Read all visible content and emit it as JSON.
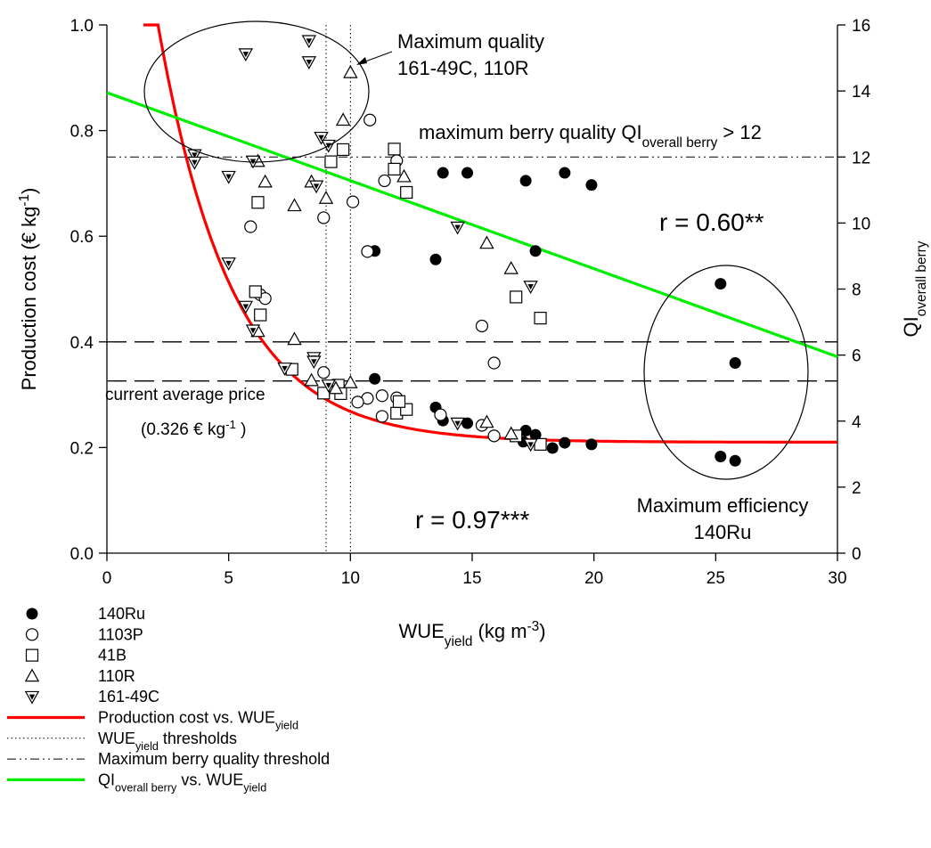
{
  "chart_data": {
    "type": "scatter",
    "x_axis": {
      "label": "WUE",
      "label_sub": "yield",
      "label_units": "(kg m",
      "label_sup": "-3",
      "label_close": ")",
      "range": [
        0,
        30
      ],
      "ticks": [
        0,
        5,
        10,
        15,
        20,
        25,
        30
      ]
    },
    "y_left": {
      "label": "Production cost (€ kg",
      "label_sup": "-1",
      "label_close": ")",
      "range": [
        0,
        1
      ],
      "ticks": [
        "0.0",
        "0.2",
        "0.4",
        "0.6",
        "0.8",
        "1.0"
      ]
    },
    "y_right": {
      "label": "QI",
      "label_sub": "overall berry",
      "range": [
        0,
        16
      ],
      "ticks": [
        0,
        2,
        4,
        6,
        8,
        10,
        12,
        14,
        16
      ]
    },
    "series": [
      {
        "name": "140Ru",
        "marker": "filled-circle",
        "points": [
          [
            11.0,
            0.572
          ],
          [
            11.0,
            0.33
          ],
          [
            13.5,
            0.556
          ],
          [
            13.5,
            0.276
          ],
          [
            13.8,
            0.72
          ],
          [
            13.8,
            0.251
          ],
          [
            14.8,
            0.72
          ],
          [
            14.8,
            0.246
          ],
          [
            17.2,
            0.705
          ],
          [
            17.2,
            0.232
          ],
          [
            17.1,
            0.211
          ],
          [
            17.6,
            0.572
          ],
          [
            17.6,
            0.224
          ],
          [
            18.8,
            0.72
          ],
          [
            18.8,
            0.209
          ],
          [
            18.3,
            0.199
          ],
          [
            19.9,
            0.697
          ],
          [
            19.9,
            0.206
          ],
          [
            25.2,
            0.51
          ],
          [
            25.2,
            0.183
          ],
          [
            25.8,
            0.36
          ],
          [
            25.8,
            0.175
          ]
        ]
      },
      {
        "name": "1103P",
        "marker": "open-circle",
        "points": [
          [
            5.9,
            0.618
          ],
          [
            6.3,
            0.489
          ],
          [
            6.5,
            0.482
          ],
          [
            8.9,
            0.635
          ],
          [
            8.9,
            0.342
          ],
          [
            10.1,
            0.665
          ],
          [
            10.8,
            0.82
          ],
          [
            10.7,
            0.571
          ],
          [
            10.7,
            0.293
          ],
          [
            11.4,
            0.705
          ],
          [
            11.9,
            0.743
          ],
          [
            11.9,
            0.294
          ],
          [
            11.3,
            0.298
          ],
          [
            11.3,
            0.259
          ],
          [
            13.7,
            0.262
          ],
          [
            15.4,
            0.43
          ],
          [
            15.4,
            0.242
          ],
          [
            15.9,
            0.36
          ],
          [
            15.9,
            0.222
          ],
          [
            10.3,
            0.286
          ]
        ]
      },
      {
        "name": "41B",
        "marker": "open-square",
        "points": [
          [
            6.2,
            0.664
          ],
          [
            6.1,
            0.495
          ],
          [
            6.3,
            0.451
          ],
          [
            7.6,
            0.348
          ],
          [
            9.2,
            0.741
          ],
          [
            9.7,
            0.764
          ],
          [
            9.5,
            0.318
          ],
          [
            8.9,
            0.303
          ],
          [
            11.8,
            0.765
          ],
          [
            11.8,
            0.727
          ],
          [
            11.9,
            0.265
          ],
          [
            12.3,
            0.683
          ],
          [
            12.3,
            0.272
          ],
          [
            12.0,
            0.287
          ],
          [
            16.8,
            0.485
          ],
          [
            16.8,
            0.222
          ],
          [
            17.8,
            0.445
          ],
          [
            17.8,
            0.206
          ],
          [
            9.6,
            0.302
          ]
        ]
      },
      {
        "name": "110R",
        "marker": "open-triangle",
        "points": [
          [
            6.2,
            0.742
          ],
          [
            6.5,
            0.703
          ],
          [
            6.2,
            0.42
          ],
          [
            7.7,
            0.658
          ],
          [
            7.7,
            0.405
          ],
          [
            8.4,
            0.703
          ],
          [
            8.4,
            0.327
          ],
          [
            9.7,
            0.82
          ],
          [
            9.0,
            0.672
          ],
          [
            10.0,
            0.91
          ],
          [
            10.0,
            0.323
          ],
          [
            12.2,
            0.713
          ],
          [
            15.6,
            0.587
          ],
          [
            15.6,
            0.248
          ],
          [
            16.6,
            0.539
          ],
          [
            16.6,
            0.226
          ],
          [
            9.4,
            0.312
          ]
        ]
      },
      {
        "name": "161-49C",
        "marker": "down-triangle",
        "points": [
          [
            3.6,
            0.754
          ],
          [
            3.6,
            0.74
          ],
          [
            5.0,
            0.713
          ],
          [
            5.0,
            0.549
          ],
          [
            5.7,
            0.945
          ],
          [
            5.7,
            0.467
          ],
          [
            6.0,
            0.422
          ],
          [
            6.0,
            0.742
          ],
          [
            7.3,
            0.35
          ],
          [
            8.3,
            0.97
          ],
          [
            8.3,
            0.93
          ],
          [
            8.5,
            0.37
          ],
          [
            8.5,
            0.363
          ],
          [
            8.6,
            0.695
          ],
          [
            8.8,
            0.787
          ],
          [
            9.1,
            0.772
          ],
          [
            9.1,
            0.318
          ],
          [
            14.4,
            0.617
          ],
          [
            14.4,
            0.246
          ],
          [
            17.4,
            0.505
          ],
          [
            17.4,
            0.206
          ]
        ]
      }
    ],
    "fits": [
      {
        "name": "Production cost vs. WUE",
        "name_sub": "yield",
        "color": "#ff0000",
        "axis": "left",
        "model": "exp-decay",
        "params": {
          "y0": 0.21,
          "a": 1.58,
          "k": 0.33
        },
        "x_range": [
          1.5,
          30
        ]
      },
      {
        "name": "QI",
        "name_sub": "overall berry",
        "name_tail": "vs. WUE",
        "name_tail_sub": "yield",
        "color": "#00ee00",
        "axis": "right",
        "model": "linear",
        "endpoints": [
          [
            0,
            13.95
          ],
          [
            30,
            5.95
          ]
        ]
      }
    ],
    "reference_lines": {
      "wue_thresholds": [
        9.0,
        10.0
      ],
      "max_quality_threshold": 0.75,
      "dashed_levels": [
        0.4,
        0.326
      ]
    },
    "annotations": {
      "max_quality_title": "Maximum quality",
      "max_quality_sub": "161-49C, 110R",
      "max_berry_text": "maximum berry quality QI",
      "max_berry_sub": "overall berry",
      "max_berry_tail": " > 12",
      "r_green": "r = 0.60**",
      "r_red": "r = 0.97***",
      "max_eff_title": "Maximum efficiency",
      "max_eff_sub": "140Ru",
      "price_line1": "current average price",
      "price_line2": "(0.326 € kg",
      "price_sup": "-1",
      "price_close": " )"
    },
    "legend": {
      "placement": "bottom-left",
      "items": [
        {
          "label": "140Ru",
          "sub": "",
          "kind": "marker",
          "marker": "filled-circle"
        },
        {
          "label": "1103P",
          "sub": "",
          "kind": "marker",
          "marker": "open-circle"
        },
        {
          "label": "41B",
          "sub": "",
          "kind": "marker",
          "marker": "open-square"
        },
        {
          "label": "110R",
          "sub": "",
          "kind": "marker",
          "marker": "open-triangle"
        },
        {
          "label": "161-49C",
          "sub": "",
          "kind": "marker",
          "marker": "down-triangle"
        },
        {
          "label": "Production cost vs. WUE",
          "sub": "yield",
          "tail": "",
          "tail_sub": "",
          "kind": "line",
          "style": "red-solid"
        },
        {
          "label": "WUE",
          "sub": "yield",
          "tail": " thresholds",
          "tail_sub": "",
          "kind": "line",
          "style": "dotted"
        },
        {
          "label": "Maximum berry quality threshold",
          "sub": "",
          "tail": "",
          "tail_sub": "",
          "kind": "line",
          "style": "dash-dot-dot"
        },
        {
          "label": "QI",
          "sub": "overall berry",
          "tail": " vs. WUE",
          "tail_sub": "yield",
          "kind": "line",
          "style": "green-solid"
        }
      ]
    },
    "colors": {
      "fit_cost": "#ff0000",
      "fit_quality": "#00ee00",
      "markers": "#000000"
    }
  }
}
